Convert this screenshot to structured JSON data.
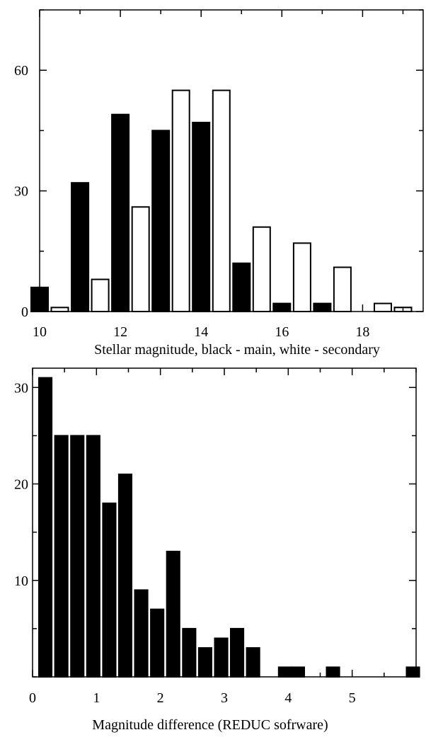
{
  "chart_data": [
    {
      "type": "bar",
      "title": "",
      "xlabel": "Stellar magnitude, black - main, white - secondary",
      "ylabel": "",
      "xlim": [
        10,
        19.5
      ],
      "ylim": [
        0,
        75
      ],
      "x_ticks": [
        10,
        12,
        14,
        16,
        18
      ],
      "y_ticks": [
        0,
        30,
        60
      ],
      "bar_width": 0.42,
      "grid": false,
      "series": [
        {
          "color": "#000000",
          "x": [
            10.0,
            11.0,
            12.0,
            13.0,
            14.0,
            15.0,
            16.0,
            17.0,
            18.0,
            19.0
          ],
          "values": [
            6,
            32,
            49,
            45,
            47,
            12,
            2,
            2,
            0,
            1
          ]
        },
        {
          "color": "#ffffff",
          "x": [
            10.5,
            11.5,
            12.5,
            13.5,
            14.5,
            15.5,
            16.5,
            17.5,
            18.5,
            19.0
          ],
          "values": [
            1,
            8,
            26,
            55,
            55,
            21,
            17,
            11,
            2,
            1
          ]
        }
      ]
    },
    {
      "type": "bar",
      "title": "",
      "xlabel": "Magnitude difference (REDUC sofrware)",
      "ylabel": "",
      "xlim": [
        0,
        6
      ],
      "ylim": [
        0,
        32
      ],
      "x_ticks": [
        0,
        1,
        2,
        3,
        4,
        5
      ],
      "y_ticks": [
        10,
        20,
        30
      ],
      "bar_width": 0.2,
      "grid": false,
      "series": [
        {
          "color": "#000000",
          "x": [
            0.2,
            0.45,
            0.7,
            0.95,
            1.2,
            1.45,
            1.7,
            1.95,
            2.2,
            2.45,
            2.7,
            2.95,
            3.2,
            3.45,
            3.95,
            4.15,
            4.7,
            5.95
          ],
          "values": [
            31,
            25,
            25,
            25,
            18,
            21,
            9,
            7,
            13,
            5,
            3,
            4,
            5,
            3,
            1,
            1,
            1,
            1
          ]
        }
      ]
    }
  ]
}
